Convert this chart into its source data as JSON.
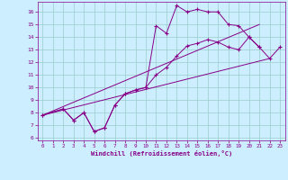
{
  "xlabel": "Windchill (Refroidissement éolien,°C)",
  "background_color": "#cceeff",
  "grid_color": "#99cccc",
  "line_color": "#880088",
  "xlim": [
    -0.5,
    23.5
  ],
  "ylim": [
    5.8,
    16.8
  ],
  "yticks": [
    6,
    7,
    8,
    9,
    10,
    11,
    12,
    13,
    14,
    15,
    16
  ],
  "xticks": [
    0,
    1,
    2,
    3,
    4,
    5,
    6,
    7,
    8,
    9,
    10,
    11,
    12,
    13,
    14,
    15,
    16,
    17,
    18,
    19,
    20,
    21,
    22,
    23
  ],
  "series": [
    {
      "x": [
        0,
        2,
        3,
        4,
        5,
        6,
        7,
        8,
        9,
        10,
        11,
        12,
        13,
        14,
        15,
        16,
        17,
        18,
        19,
        20,
        21
      ],
      "y": [
        7.8,
        8.3,
        7.4,
        8.0,
        6.5,
        6.8,
        8.6,
        9.5,
        9.8,
        10.0,
        14.9,
        14.3,
        16.5,
        16.0,
        16.2,
        16.0,
        16.0,
        15.0,
        14.9,
        14.0,
        13.2
      ],
      "marker": true
    },
    {
      "x": [
        0,
        2,
        3,
        4,
        5,
        6,
        7,
        8,
        9,
        10,
        11,
        12,
        13,
        14,
        15,
        16,
        17,
        18,
        19,
        20,
        21,
        22,
        23
      ],
      "y": [
        7.8,
        8.3,
        7.4,
        8.0,
        6.5,
        6.8,
        8.6,
        9.5,
        9.8,
        10.0,
        11.0,
        11.6,
        12.5,
        13.3,
        13.5,
        13.8,
        13.6,
        13.2,
        13.0,
        14.0,
        13.2,
        12.3,
        13.2
      ],
      "marker": true
    },
    {
      "x": [
        0,
        22
      ],
      "y": [
        7.8,
        12.3
      ],
      "marker": false
    },
    {
      "x": [
        0,
        21
      ],
      "y": [
        7.8,
        15.0
      ],
      "marker": false
    }
  ]
}
